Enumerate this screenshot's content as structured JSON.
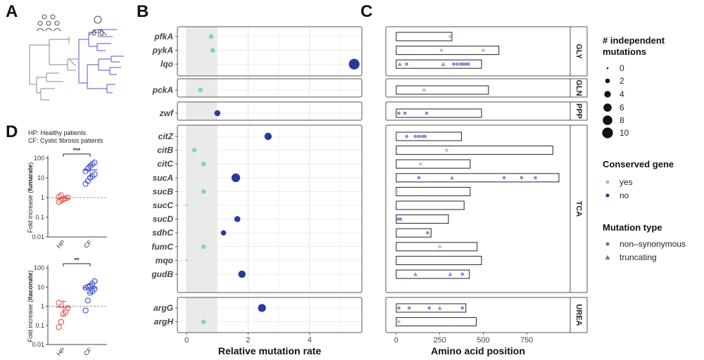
{
  "panels": {
    "a": "A",
    "b": "B",
    "c": "C",
    "d": "D"
  },
  "colors": {
    "conserved_yes": "#7fd6b4",
    "conserved_no": "#2a3a9c",
    "hp": "#e8574d",
    "cf": "#3f4fd0",
    "tree_cf": "#5a4fd0",
    "shade": "#e9ebe9"
  },
  "icons": {
    "healthy": "group-of-people-icon",
    "cf": "patient-lungs-icon"
  },
  "chart_data": [
    {
      "type": "scatter",
      "panel": "B",
      "xlabel": "Relative mutation rate",
      "xticks": [
        0,
        2,
        4
      ],
      "xlim": [
        -0.3,
        5.7
      ],
      "shaded_region": [
        0,
        1
      ],
      "groups": [
        {
          "genes": [
            {
              "gene": "pfkA",
              "rate": 0.8,
              "n": 1,
              "conserved": "yes"
            },
            {
              "gene": "pykA",
              "rate": 0.85,
              "n": 1,
              "conserved": "yes"
            },
            {
              "gene": "lqo",
              "rate": 5.45,
              "n": 10,
              "conserved": "no"
            }
          ]
        },
        {
          "genes": [
            {
              "gene": "pckA",
              "rate": 0.45,
              "n": 1,
              "conserved": "yes"
            }
          ]
        },
        {
          "genes": [
            {
              "gene": "zwf",
              "rate": 1.0,
              "n": 3,
              "conserved": "no"
            }
          ]
        },
        {
          "genes": [
            {
              "gene": "citZ",
              "rate": 2.65,
              "n": 5,
              "conserved": "no"
            },
            {
              "gene": "citB",
              "rate": 0.25,
              "n": 1,
              "conserved": "yes"
            },
            {
              "gene": "citC",
              "rate": 0.55,
              "n": 1,
              "conserved": "yes"
            },
            {
              "gene": "sucA",
              "rate": 1.6,
              "n": 7,
              "conserved": "no"
            },
            {
              "gene": "sucB",
              "rate": 0.55,
              "n": 1,
              "conserved": "yes"
            },
            {
              "gene": "sucC",
              "rate": 0.0,
              "n": 0,
              "conserved": "yes"
            },
            {
              "gene": "sucD",
              "rate": 1.65,
              "n": 3,
              "conserved": "no"
            },
            {
              "gene": "sdhC",
              "rate": 1.2,
              "n": 2,
              "conserved": "no"
            },
            {
              "gene": "fumC",
              "rate": 0.55,
              "n": 1,
              "conserved": "yes"
            },
            {
              "gene": "mqo",
              "rate": 0.0,
              "n": 0,
              "conserved": "yes"
            },
            {
              "gene": "gudB",
              "rate": 1.8,
              "n": 5,
              "conserved": "no"
            }
          ]
        },
        {
          "genes": [
            {
              "gene": "argG",
              "rate": 2.45,
              "n": 6,
              "conserved": "no"
            },
            {
              "gene": "argH",
              "rate": 0.55,
              "n": 1,
              "conserved": "yes"
            }
          ]
        }
      ]
    },
    {
      "type": "scatter",
      "panel": "C",
      "xlabel": "Amino acid position",
      "xticks": [
        0,
        250,
        500,
        750
      ],
      "xlim": [
        -60,
        1000
      ],
      "groups": [
        {
          "label": "GLY",
          "genes": [
            {
              "length": 320,
              "mutations": [
                {
                  "pos": 310,
                  "type": "non-synonymous",
                  "conserved": "yes"
                }
              ]
            },
            {
              "length": 590,
              "mutations": [
                {
                  "pos": 260,
                  "type": "non-synonymous",
                  "conserved": "yes"
                },
                {
                  "pos": 500,
                  "type": "non-synonymous",
                  "conserved": "yes"
                }
              ]
            },
            {
              "length": 490,
              "mutations": [
                {
                  "pos": 20,
                  "type": "truncating",
                  "conserved": "no"
                },
                {
                  "pos": 60,
                  "type": "non-synonymous",
                  "conserved": "no"
                },
                {
                  "pos": 270,
                  "type": "truncating",
                  "conserved": "no"
                },
                {
                  "pos": 330,
                  "type": "non-synonymous",
                  "conserved": "no"
                },
                {
                  "pos": 350,
                  "type": "non-synonymous",
                  "conserved": "no"
                },
                {
                  "pos": 370,
                  "type": "non-synonymous",
                  "conserved": "no"
                },
                {
                  "pos": 385,
                  "type": "non-synonymous",
                  "conserved": "no"
                },
                {
                  "pos": 400,
                  "type": "non-synonymous",
                  "conserved": "no"
                },
                {
                  "pos": 415,
                  "type": "non-synonymous",
                  "conserved": "no"
                }
              ]
            }
          ]
        },
        {
          "label": "GLN",
          "genes": [
            {
              "length": 530,
              "mutations": [
                {
                  "pos": 160,
                  "type": "non-synonymous",
                  "conserved": "yes"
                }
              ]
            }
          ]
        },
        {
          "label": "PPP",
          "genes": [
            {
              "length": 490,
              "mutations": [
                {
                  "pos": 15,
                  "type": "non-synonymous",
                  "conserved": "no"
                },
                {
                  "pos": 50,
                  "type": "non-synonymous",
                  "conserved": "no"
                },
                {
                  "pos": 175,
                  "type": "non-synonymous",
                  "conserved": "no"
                }
              ]
            }
          ]
        },
        {
          "label": "TCA",
          "genes": [
            {
              "length": 375,
              "mutations": [
                {
                  "pos": 60,
                  "type": "non-synonymous",
                  "conserved": "no"
                },
                {
                  "pos": 110,
                  "type": "non-synonymous",
                  "conserved": "no"
                },
                {
                  "pos": 130,
                  "type": "non-synonymous",
                  "conserved": "no"
                },
                {
                  "pos": 150,
                  "type": "non-synonymous",
                  "conserved": "no"
                },
                {
                  "pos": 165,
                  "type": "non-synonymous",
                  "conserved": "no"
                }
              ]
            },
            {
              "length": 900,
              "mutations": [
                {
                  "pos": 290,
                  "type": "non-synonymous",
                  "conserved": "yes"
                }
              ]
            },
            {
              "length": 425,
              "mutations": [
                {
                  "pos": 140,
                  "type": "non-synonymous",
                  "conserved": "yes"
                }
              ]
            },
            {
              "length": 935,
              "mutations": [
                {
                  "pos": 130,
                  "type": "non-synonymous",
                  "conserved": "no"
                },
                {
                  "pos": 320,
                  "type": "truncating",
                  "conserved": "no"
                },
                {
                  "pos": 620,
                  "type": "non-synonymous",
                  "conserved": "no"
                },
                {
                  "pos": 720,
                  "type": "non-synonymous",
                  "conserved": "no"
                },
                {
                  "pos": 800,
                  "type": "non-synonymous",
                  "conserved": "no"
                }
              ]
            },
            {
              "length": 425,
              "mutations": [
                {
                  "pos": 0,
                  "type": "non-synonymous",
                  "conserved": "yes"
                }
              ]
            },
            {
              "length": 390,
              "mutations": []
            },
            {
              "length": 300,
              "mutations": [
                {
                  "pos": 10,
                  "type": "non-synonymous",
                  "conserved": "no"
                },
                {
                  "pos": 25,
                  "type": "non-synonymous",
                  "conserved": "no"
                }
              ]
            },
            {
              "length": 200,
              "mutations": [
                {
                  "pos": 180,
                  "type": "non-synonymous",
                  "conserved": "no"
                }
              ]
            },
            {
              "length": 465,
              "mutations": [
                {
                  "pos": 250,
                  "type": "non-synonymous",
                  "conserved": "yes"
                }
              ]
            },
            {
              "length": 490,
              "mutations": []
            },
            {
              "length": 420,
              "mutations": [
                {
                  "pos": 110,
                  "type": "truncating",
                  "conserved": "no"
                },
                {
                  "pos": 310,
                  "type": "truncating",
                  "conserved": "no"
                },
                {
                  "pos": 380,
                  "type": "non-synonymous",
                  "conserved": "no"
                }
              ]
            }
          ]
        },
        {
          "label": "UREA",
          "genes": [
            {
              "length": 400,
              "mutations": [
                {
                  "pos": 15,
                  "type": "non-synonymous",
                  "conserved": "no"
                },
                {
                  "pos": 75,
                  "type": "non-synonymous",
                  "conserved": "no"
                },
                {
                  "pos": 190,
                  "type": "non-synonymous",
                  "conserved": "no"
                },
                {
                  "pos": 250,
                  "type": "truncating",
                  "conserved": "no"
                },
                {
                  "pos": 380,
                  "type": "non-synonymous",
                  "conserved": "no"
                }
              ]
            },
            {
              "length": 460,
              "mutations": [
                {
                  "pos": 15,
                  "type": "non-synonymous",
                  "conserved": "yes"
                }
              ]
            }
          ]
        }
      ]
    },
    {
      "type": "scatter",
      "panel": "D-top",
      "ylabel_pre": "Fold increase (",
      "ylabel_metabolite": "fumarate",
      "ylabel_post": ")",
      "yscale": "log",
      "yticks": [
        "0.01",
        "0.1",
        "1",
        "10",
        "100"
      ],
      "ylim": [
        0.01,
        100
      ],
      "categories": [
        "HP",
        "CF"
      ],
      "significance": "***",
      "points": {
        "HP": [
          0.6,
          0.7,
          0.8,
          0.9,
          1.0,
          1.1,
          1.3
        ],
        "CF": [
          5,
          7,
          10,
          12,
          15,
          22,
          30,
          40,
          50,
          60
        ]
      },
      "mean": {
        "HP": 0.9,
        "CF": 25
      },
      "ci": {
        "HP": [
          0.7,
          1.1
        ],
        "CF": [
          12,
          45
        ]
      }
    },
    {
      "type": "scatter",
      "panel": "D-bottom",
      "ylabel_pre": "Fold increase (",
      "ylabel_metabolite": "itaconate",
      "ylabel_post": ")",
      "yscale": "log",
      "yticks": [
        "0.01",
        "0.1",
        "1",
        "10",
        "100"
      ],
      "ylim": [
        0.01,
        100
      ],
      "categories": [
        "HP",
        "CF"
      ],
      "significance": "**",
      "points": {
        "HP": [
          0.08,
          0.15,
          0.4,
          0.5,
          0.8,
          1.5
        ],
        "CF": [
          0.6,
          2,
          5,
          6,
          8,
          9,
          10,
          12,
          15,
          20
        ]
      },
      "mean": {
        "HP": 0.9,
        "CF": 9
      },
      "ci": {
        "HP": [
          0.3,
          1.8
        ],
        "CF": [
          5,
          14
        ]
      }
    }
  ],
  "panel_d": {
    "legend_hp": "HP: Healthy patients",
    "legend_cf": "CF: Cystic fibrosis patients"
  },
  "legend": {
    "size_title_1": "# independent",
    "size_title_2": "mutations",
    "size_values": [
      "0",
      "2",
      "4",
      "6",
      "8",
      "10"
    ],
    "conserved_title": "Conserved gene",
    "conserved_yes": "yes",
    "conserved_no": "no",
    "mutation_title": "Mutation type",
    "mutation_nonsyn": "non–synonymous",
    "mutation_trunc": "truncating"
  }
}
